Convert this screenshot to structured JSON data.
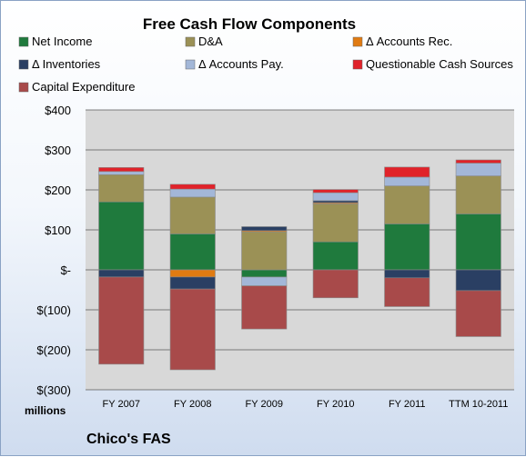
{
  "chart_data": {
    "type": "bar",
    "stacked": true,
    "title": "Free Cash Flow Components",
    "categories": [
      "FY 2007",
      "FY 2008",
      "FY 2009",
      "FY 2010",
      "FY 2011",
      "TTM 10-2011"
    ],
    "ylim": [
      -300,
      400
    ],
    "yticks": [
      {
        "value": 400,
        "label": "$400"
      },
      {
        "value": 300,
        "label": "$300"
      },
      {
        "value": 200,
        "label": "$200"
      },
      {
        "value": 100,
        "label": "$100"
      },
      {
        "value": 0,
        "label": "$-"
      },
      {
        "value": -100,
        "label": "$(100)"
      },
      {
        "value": -200,
        "label": "$(200)"
      },
      {
        "value": -300,
        "label": "$(300)"
      }
    ],
    "units_label": "millions",
    "company": "Chico's FAS",
    "legend_position": "top",
    "series": [
      {
        "name": "Net Income",
        "color": "#1f7a3d",
        "values": [
          170,
          90,
          -18,
          70,
          115,
          140
        ]
      },
      {
        "name": "D&A",
        "color": "#9b9156",
        "values": [
          68,
          92,
          95,
          95,
          95,
          95
        ]
      },
      {
        "name": "Δ Accounts Rec.",
        "color": "#e07b12",
        "values": [
          0,
          -18,
          3,
          3,
          0,
          0
        ]
      },
      {
        "name": "Δ Inventories",
        "color": "#2a3f63",
        "values": [
          -18,
          -30,
          10,
          5,
          -20,
          -52
        ]
      },
      {
        "name": "Δ Accounts Pay.",
        "color": "#a3b7d8",
        "values": [
          8,
          20,
          -22,
          20,
          22,
          32
        ]
      },
      {
        "name": "Questionable Cash Sources",
        "color": "#e0222a",
        "values": [
          10,
          12,
          0,
          8,
          25,
          8
        ]
      },
      {
        "name": "Capital Expenditure",
        "color": "#a84a4a",
        "values": [
          -218,
          -202,
          -108,
          -70,
          -72,
          -115
        ]
      }
    ]
  }
}
